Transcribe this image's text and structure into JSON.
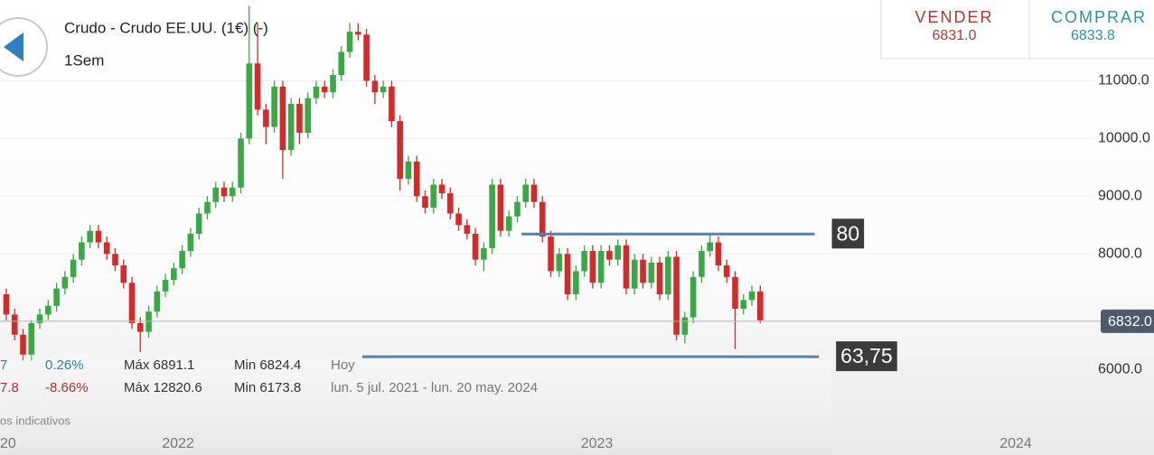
{
  "header": {
    "title": "Crudo - Crudo EE.UU. (1€) (-)",
    "period": "1Sem"
  },
  "quote": {
    "sell_label": "VENDER",
    "sell": "6831.0",
    "buy_label": "COMPRAR",
    "buy": "6833.8"
  },
  "stats": {
    "rows": [
      [
        "7",
        "0.26%",
        "Máx 6891.1",
        "Min 6824.4",
        "Hoy"
      ],
      [
        "7.8",
        "-8.66%",
        "Máx 12820.6",
        "Min 6173.8",
        "lun. 5 jul. 2021 - lun. 20 may. 2024"
      ]
    ],
    "note": "os indicativos",
    "axis_fragment": "20"
  },
  "chart_data": {
    "type": "candlestick",
    "up_color": "#3aa845",
    "down_color": "#d42a2a",
    "grid": true,
    "xlim": [
      2021.575,
      2024.33
    ],
    "xticks": [
      2022,
      2023,
      2024
    ],
    "ylim": [
      5000,
      12400
    ],
    "yticks": [
      {
        "value": 6000,
        "label": "6000.0"
      },
      {
        "value": 8000,
        "label": "8000.0"
      },
      {
        "value": 9000,
        "label": "9000.0"
      },
      {
        "value": 10000,
        "label": "10000.0"
      },
      {
        "value": 11000,
        "label": "11000.0"
      }
    ],
    "x": [
      2021.59,
      2021.61,
      2021.63,
      2021.65,
      2021.67,
      2021.69,
      2021.71,
      2021.73,
      2021.75,
      2021.77,
      2021.79,
      2021.81,
      2021.83,
      2021.85,
      2021.87,
      2021.89,
      2021.91,
      2021.93,
      2021.95,
      2021.97,
      2021.99,
      2022.01,
      2022.03,
      2022.05,
      2022.07,
      2022.09,
      2022.11,
      2022.13,
      2022.15,
      2022.17,
      2022.19,
      2022.21,
      2022.23,
      2022.25,
      2022.27,
      2022.29,
      2022.31,
      2022.33,
      2022.35,
      2022.37,
      2022.39,
      2022.41,
      2022.43,
      2022.45,
      2022.47,
      2022.49,
      2022.51,
      2022.53,
      2022.55,
      2022.57,
      2022.59,
      2022.61,
      2022.63,
      2022.65,
      2022.67,
      2022.69,
      2022.71,
      2022.73,
      2022.75,
      2022.77,
      2022.79,
      2022.81,
      2022.83,
      2022.85,
      2022.87,
      2022.89,
      2022.91,
      2022.93,
      2022.95,
      2022.97,
      2022.99,
      2023.01,
      2023.03,
      2023.05,
      2023.07,
      2023.09,
      2023.11,
      2023.13,
      2023.15,
      2023.17,
      2023.19,
      2023.21,
      2023.23,
      2023.25,
      2023.27,
      2023.29,
      2023.31,
      2023.33,
      2023.35,
      2023.37,
      2023.39
    ],
    "open": [
      7300,
      6950,
      6600,
      6250,
      6800,
      6950,
      7100,
      7400,
      7600,
      7900,
      8200,
      8400,
      8200,
      8000,
      7800,
      7500,
      6800,
      6650,
      7000,
      7350,
      7550,
      7750,
      8050,
      8350,
      8700,
      8900,
      9150,
      9000,
      9150,
      10000,
      11300,
      10500,
      10200,
      10900,
      9800,
      10600,
      10100,
      10700,
      10900,
      10800,
      11100,
      11500,
      11850,
      11800,
      11000,
      10800,
      10900,
      10300,
      9300,
      9600,
      9000,
      8800,
      9200,
      9050,
      8700,
      8500,
      8350,
      7900,
      8100,
      9200,
      8400,
      8650,
      8900,
      9200,
      8900,
      8300,
      7700,
      8000,
      7300,
      7700,
      8050,
      7500,
      8050,
      7900,
      8150,
      7400,
      7900,
      7500,
      7850,
      7300,
      7950,
      6600,
      6900,
      7600,
      8050,
      8200,
      7800,
      7600,
      7050,
      7200,
      7350
    ],
    "high": [
      7400,
      7050,
      6700,
      6850,
      7050,
      7200,
      7500,
      7700,
      8000,
      8300,
      8500,
      8500,
      8300,
      8100,
      7900,
      7600,
      6900,
      7100,
      7450,
      7650,
      7850,
      8150,
      8450,
      8800,
      9000,
      9250,
      9250,
      9250,
      10100,
      12300,
      12000,
      10600,
      11000,
      11000,
      10700,
      10700,
      10800,
      11000,
      11000,
      11200,
      11600,
      12000,
      12000,
      11900,
      11100,
      11000,
      11000,
      10400,
      9700,
      9700,
      9100,
      9300,
      9300,
      9150,
      8800,
      8600,
      8450,
      8200,
      9300,
      9300,
      8750,
      9000,
      9300,
      9300,
      9000,
      8400,
      8100,
      8100,
      7800,
      8150,
      8150,
      8150,
      8150,
      8250,
      8250,
      8000,
      8000,
      7950,
      7950,
      8050,
      8050,
      7000,
      7700,
      8150,
      8350,
      8300,
      7900,
      7700,
      7300,
      7450,
      7450
    ],
    "low": [
      6850,
      6500,
      6150,
      6150,
      6700,
      6850,
      7000,
      7300,
      7500,
      7800,
      8100,
      8100,
      7900,
      7700,
      7400,
      6700,
      6300,
      6550,
      6900,
      7250,
      7450,
      7650,
      7950,
      8250,
      8600,
      8800,
      8900,
      8900,
      9050,
      9900,
      10400,
      9900,
      10100,
      9300,
      9700,
      9900,
      10000,
      10600,
      10700,
      10700,
      11000,
      11400,
      11700,
      10900,
      10600,
      10700,
      10200,
      9100,
      9200,
      8900,
      8700,
      8700,
      8950,
      8600,
      8400,
      8250,
      7800,
      7700,
      8000,
      8300,
      8300,
      8550,
      8800,
      8800,
      8200,
      7600,
      7600,
      7200,
      7200,
      7600,
      7400,
      7400,
      7800,
      7800,
      7300,
      7300,
      7400,
      7400,
      7200,
      7200,
      6500,
      6450,
      6800,
      7500,
      7950,
      7700,
      7500,
      6350,
      6950,
      7100,
      6800
    ],
    "close": [
      6950,
      6600,
      6250,
      6800,
      6950,
      7100,
      7400,
      7600,
      7900,
      8200,
      8400,
      8200,
      8000,
      7800,
      7500,
      6800,
      6650,
      7000,
      7350,
      7550,
      7750,
      8050,
      8350,
      8700,
      8900,
      9150,
      9000,
      9150,
      10000,
      11300,
      10500,
      10200,
      10900,
      9800,
      10600,
      10100,
      10700,
      10900,
      10800,
      11100,
      11500,
      11850,
      11800,
      11000,
      10800,
      10900,
      10300,
      9300,
      9600,
      9000,
      8800,
      9200,
      9050,
      8700,
      8500,
      8350,
      7900,
      8100,
      9200,
      8400,
      8650,
      8900,
      9200,
      8900,
      8300,
      7700,
      8000,
      7300,
      7700,
      8050,
      7500,
      8050,
      7900,
      8150,
      7400,
      7900,
      7500,
      7850,
      7300,
      7950,
      6600,
      6900,
      7600,
      8050,
      8200,
      7800,
      7600,
      7050,
      7200,
      7350,
      6850
    ],
    "levels": [
      {
        "label": "80",
        "value": 8344,
        "x": [
          2022.82,
          2023.52
        ]
      },
      {
        "label": "63,75",
        "value": 6219,
        "x": [
          2022.44,
          2023.53
        ]
      }
    ],
    "last": {
      "value": 6832,
      "label": "6832.0"
    }
  }
}
